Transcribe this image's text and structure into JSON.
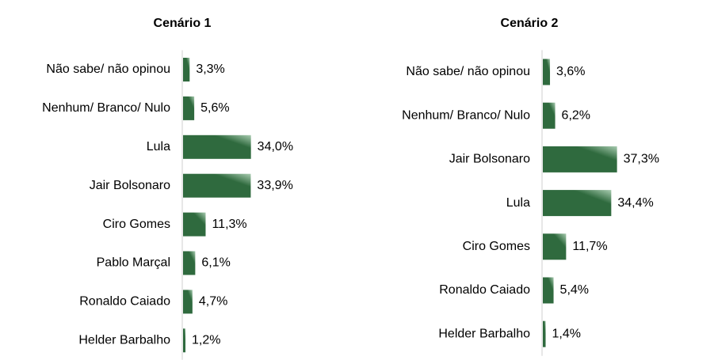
{
  "chart_data": [
    {
      "type": "bar",
      "orientation": "horizontal",
      "title": "Cenário 1",
      "categories": [
        "Não sabe/ não opinou",
        "Nenhum/ Branco/ Nulo",
        "Lula",
        "Jair Bolsonaro",
        "Ciro Gomes",
        "Pablo Marçal",
        "Ronaldo Caiado",
        "Helder Barbalho"
      ],
      "values": [
        3.3,
        5.6,
        34.0,
        33.9,
        11.3,
        6.1,
        4.7,
        1.2
      ],
      "value_labels": [
        "3,3%",
        "5,6%",
        "34,0%",
        "33,9%",
        "11,3%",
        "6,1%",
        "4,7%",
        "1,2%"
      ],
      "unit": "%",
      "grid": false,
      "legend": "none"
    },
    {
      "type": "bar",
      "orientation": "horizontal",
      "title": "Cenário 2",
      "categories": [
        "Não sabe/ não opinou",
        "Nenhum/ Branco/ Nulo",
        "Jair Bolsonaro",
        "Lula",
        "Ciro Gomes",
        "Ronaldo Caiado",
        "Helder Barbalho"
      ],
      "values": [
        3.6,
        6.2,
        37.3,
        34.4,
        11.7,
        5.4,
        1.4
      ],
      "value_labels": [
        "3,6%",
        "6,2%",
        "37,3%",
        "34,4%",
        "11,7%",
        "5,4%",
        "1,4%"
      ],
      "unit": "%",
      "grid": false,
      "legend": "none"
    }
  ],
  "colors": {
    "bar_dark": "#2f6a3e",
    "bar_light": "#a8cbb0",
    "axis": "#cfcfcf",
    "text": "#000000"
  }
}
